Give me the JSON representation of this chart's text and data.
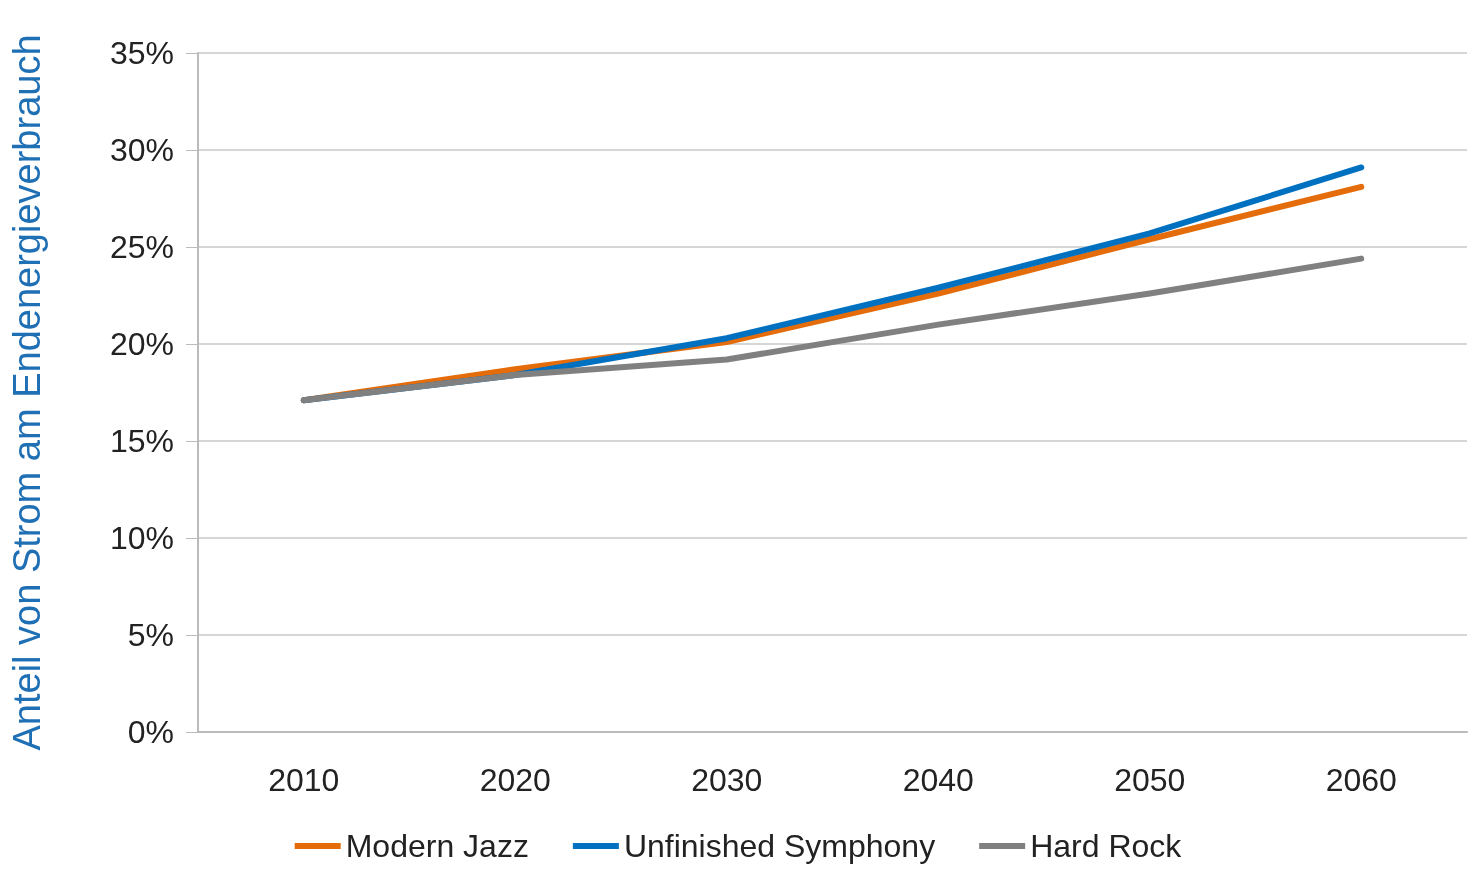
{
  "chart_data": {
    "type": "line",
    "ylabel": "Anteil von Strom am Endenergieverbrauch",
    "categories": [
      "2010",
      "2020",
      "2030",
      "2040",
      "2050",
      "2060"
    ],
    "series": [
      {
        "name": "Modern Jazz",
        "color": "#e46c0a",
        "values": [
          17.1,
          18.7,
          20.1,
          22.6,
          25.4,
          28.1
        ]
      },
      {
        "name": "Unfinished Symphony",
        "color": "#0070c0",
        "values": [
          17.1,
          18.4,
          20.3,
          22.9,
          25.7,
          29.1
        ]
      },
      {
        "name": "Hard Rock",
        "color": "#808080",
        "values": [
          17.1,
          18.4,
          19.2,
          21.0,
          22.6,
          24.4
        ]
      }
    ],
    "ylim": [
      0,
      35
    ],
    "yticks": [
      {
        "value": 0,
        "label": "0%"
      },
      {
        "value": 5,
        "label": "5%"
      },
      {
        "value": 10,
        "label": "10%"
      },
      {
        "value": 15,
        "label": "15%"
      },
      {
        "value": 20,
        "label": "20%"
      },
      {
        "value": 25,
        "label": "25%"
      },
      {
        "value": 30,
        "label": "30%"
      },
      {
        "value": 35,
        "label": "35%"
      }
    ],
    "grid": "y",
    "legend": "bottom",
    "marker": "none",
    "line_style": "solid"
  }
}
